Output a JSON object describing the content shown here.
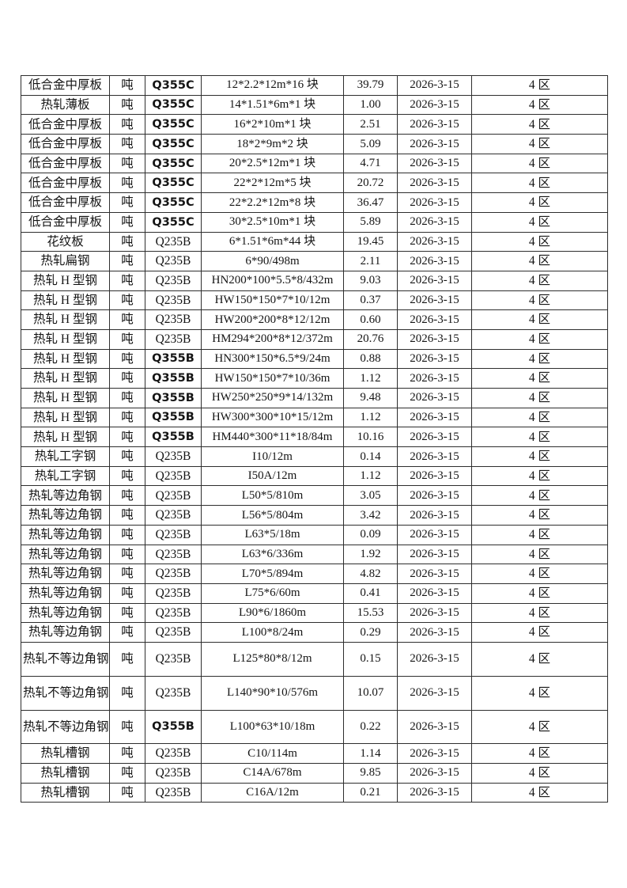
{
  "page": {
    "background": "#ffffff",
    "text_color": "#151515",
    "border_color": "#2e2e2e"
  },
  "table": {
    "columns": [
      {
        "key": "product"
      },
      {
        "key": "unit"
      },
      {
        "key": "grade"
      },
      {
        "key": "spec"
      },
      {
        "key": "qty"
      },
      {
        "key": "date"
      },
      {
        "key": "zone"
      }
    ],
    "rows": [
      {
        "product": "低合金中厚板",
        "unit": "吨",
        "grade": "Q355C",
        "grade_bold": true,
        "spec": "12*2.2*12m*16 块",
        "qty": "39.79",
        "date": "2026-3-15",
        "zone": "4 区"
      },
      {
        "product": "热轧薄板",
        "unit": "吨",
        "grade": "Q355C",
        "grade_bold": true,
        "spec": "14*1.51*6m*1 块",
        "qty": "1.00",
        "date": "2026-3-15",
        "zone": "4 区"
      },
      {
        "product": "低合金中厚板",
        "unit": "吨",
        "grade": "Q355C",
        "grade_bold": true,
        "spec": "16*2*10m*1 块",
        "qty": "2.51",
        "date": "2026-3-15",
        "zone": "4 区"
      },
      {
        "product": "低合金中厚板",
        "unit": "吨",
        "grade": "Q355C",
        "grade_bold": true,
        "spec": "18*2*9m*2 块",
        "qty": "5.09",
        "date": "2026-3-15",
        "zone": "4 区"
      },
      {
        "product": "低合金中厚板",
        "unit": "吨",
        "grade": "Q355C",
        "grade_bold": true,
        "spec": "20*2.5*12m*1 块",
        "qty": "4.71",
        "date": "2026-3-15",
        "zone": "4 区"
      },
      {
        "product": "低合金中厚板",
        "unit": "吨",
        "grade": "Q355C",
        "grade_bold": true,
        "spec": "22*2*12m*5 块",
        "qty": "20.72",
        "date": "2026-3-15",
        "zone": "4 区"
      },
      {
        "product": "低合金中厚板",
        "unit": "吨",
        "grade": "Q355C",
        "grade_bold": true,
        "spec": "22*2.2*12m*8 块",
        "qty": "36.47",
        "date": "2026-3-15",
        "zone": "4 区"
      },
      {
        "product": "低合金中厚板",
        "unit": "吨",
        "grade": "Q355C",
        "grade_bold": true,
        "spec": "30*2.5*10m*1 块",
        "qty": "5.89",
        "date": "2026-3-15",
        "zone": "4 区"
      },
      {
        "product": "花纹板",
        "unit": "吨",
        "grade": "Q235B",
        "grade_bold": false,
        "spec": "6*1.51*6m*44 块",
        "qty": "19.45",
        "date": "2026-3-15",
        "zone": "4 区"
      },
      {
        "product": "热轧扁钢",
        "unit": "吨",
        "grade": "Q235B",
        "grade_bold": false,
        "spec": "6*90/498m",
        "qty": "2.11",
        "date": "2026-3-15",
        "zone": "4 区"
      },
      {
        "product": "热轧 H 型钢",
        "unit": "吨",
        "grade": "Q235B",
        "grade_bold": false,
        "spec": "HN200*100*5.5*8/432m",
        "qty": "9.03",
        "date": "2026-3-15",
        "zone": "4 区"
      },
      {
        "product": "热轧 H 型钢",
        "unit": "吨",
        "grade": "Q235B",
        "grade_bold": false,
        "spec": "HW150*150*7*10/12m",
        "qty": "0.37",
        "date": "2026-3-15",
        "zone": "4 区"
      },
      {
        "product": "热轧 H 型钢",
        "unit": "吨",
        "grade": "Q235B",
        "grade_bold": false,
        "spec": "HW200*200*8*12/12m",
        "qty": "0.60",
        "date": "2026-3-15",
        "zone": "4 区"
      },
      {
        "product": "热轧 H 型钢",
        "unit": "吨",
        "grade": "Q235B",
        "grade_bold": false,
        "spec": "HM294*200*8*12/372m",
        "qty": "20.76",
        "date": "2026-3-15",
        "zone": "4 区"
      },
      {
        "product": "热轧 H 型钢",
        "unit": "吨",
        "grade": "Q355B",
        "grade_bold": true,
        "spec": "HN300*150*6.5*9/24m",
        "qty": "0.88",
        "date": "2026-3-15",
        "zone": "4 区"
      },
      {
        "product": "热轧 H 型钢",
        "unit": "吨",
        "grade": "Q355B",
        "grade_bold": true,
        "spec": "HW150*150*7*10/36m",
        "qty": "1.12",
        "date": "2026-3-15",
        "zone": "4 区"
      },
      {
        "product": "热轧 H 型钢",
        "unit": "吨",
        "grade": "Q355B",
        "grade_bold": true,
        "spec": "HW250*250*9*14/132m",
        "qty": "9.48",
        "date": "2026-3-15",
        "zone": "4 区"
      },
      {
        "product": "热轧 H 型钢",
        "unit": "吨",
        "grade": "Q355B",
        "grade_bold": true,
        "spec": "HW300*300*10*15/12m",
        "qty": "1.12",
        "date": "2026-3-15",
        "zone": "4 区"
      },
      {
        "product": "热轧 H 型钢",
        "unit": "吨",
        "grade": "Q355B",
        "grade_bold": true,
        "spec": "HM440*300*11*18/84m",
        "qty": "10.16",
        "date": "2026-3-15",
        "zone": "4 区"
      },
      {
        "product": "热轧工字钢",
        "unit": "吨",
        "grade": "Q235B",
        "grade_bold": false,
        "spec": "I10/12m",
        "qty": "0.14",
        "date": "2026-3-15",
        "zone": "4 区"
      },
      {
        "product": "热轧工字钢",
        "unit": "吨",
        "grade": "Q235B",
        "grade_bold": false,
        "spec": "I50A/12m",
        "qty": "1.12",
        "date": "2026-3-15",
        "zone": "4 区"
      },
      {
        "product": "热轧等边角钢",
        "unit": "吨",
        "grade": "Q235B",
        "grade_bold": false,
        "spec": "L50*5/810m",
        "qty": "3.05",
        "date": "2026-3-15",
        "zone": "4 区"
      },
      {
        "product": "热轧等边角钢",
        "unit": "吨",
        "grade": "Q235B",
        "grade_bold": false,
        "spec": "L56*5/804m",
        "qty": "3.42",
        "date": "2026-3-15",
        "zone": "4 区"
      },
      {
        "product": "热轧等边角钢",
        "unit": "吨",
        "grade": "Q235B",
        "grade_bold": false,
        "spec": "L63*5/18m",
        "qty": "0.09",
        "date": "2026-3-15",
        "zone": "4 区"
      },
      {
        "product": "热轧等边角钢",
        "unit": "吨",
        "grade": "Q235B",
        "grade_bold": false,
        "spec": "L63*6/336m",
        "qty": "1.92",
        "date": "2026-3-15",
        "zone": "4 区"
      },
      {
        "product": "热轧等边角钢",
        "unit": "吨",
        "grade": "Q235B",
        "grade_bold": false,
        "spec": "L70*5/894m",
        "qty": "4.82",
        "date": "2026-3-15",
        "zone": "4 区"
      },
      {
        "product": "热轧等边角钢",
        "unit": "吨",
        "grade": "Q235B",
        "grade_bold": false,
        "spec": "L75*6/60m",
        "qty": "0.41",
        "date": "2026-3-15",
        "zone": "4 区"
      },
      {
        "product": "热轧等边角钢",
        "unit": "吨",
        "grade": "Q235B",
        "grade_bold": false,
        "spec": "L90*6/1860m",
        "qty": "15.53",
        "date": "2026-3-15",
        "zone": "4 区"
      },
      {
        "product": "热轧等边角钢",
        "unit": "吨",
        "grade": "Q235B",
        "grade_bold": false,
        "spec": "L100*8/24m",
        "qty": "0.29",
        "date": "2026-3-15",
        "zone": "4 区"
      },
      {
        "product": "热轧不等边角钢",
        "unit": "吨",
        "grade": "Q235B",
        "grade_bold": false,
        "spec": "L125*80*8/12m",
        "qty": "0.15",
        "date": "2026-3-15",
        "zone": "4 区"
      },
      {
        "product": "热轧不等边角钢",
        "unit": "吨",
        "grade": "Q235B",
        "grade_bold": false,
        "spec": "L140*90*10/576m",
        "qty": "10.07",
        "date": "2026-3-15",
        "zone": "4 区"
      },
      {
        "product": "热轧不等边角钢",
        "unit": "吨",
        "grade": "Q355B",
        "grade_bold": true,
        "spec": "L100*63*10/18m",
        "qty": "0.22",
        "date": "2026-3-15",
        "zone": "4 区"
      },
      {
        "product": "热轧槽钢",
        "unit": "吨",
        "grade": "Q235B",
        "grade_bold": false,
        "spec": "C10/114m",
        "qty": "1.14",
        "date": "2026-3-15",
        "zone": "4 区"
      },
      {
        "product": "热轧槽钢",
        "unit": "吨",
        "grade": "Q235B",
        "grade_bold": false,
        "spec": "C14A/678m",
        "qty": "9.85",
        "date": "2026-3-15",
        "zone": "4 区"
      },
      {
        "product": "热轧槽钢",
        "unit": "吨",
        "grade": "Q235B",
        "grade_bold": false,
        "spec": "C16A/12m",
        "qty": "0.21",
        "date": "2026-3-15",
        "zone": "4 区"
      }
    ]
  }
}
